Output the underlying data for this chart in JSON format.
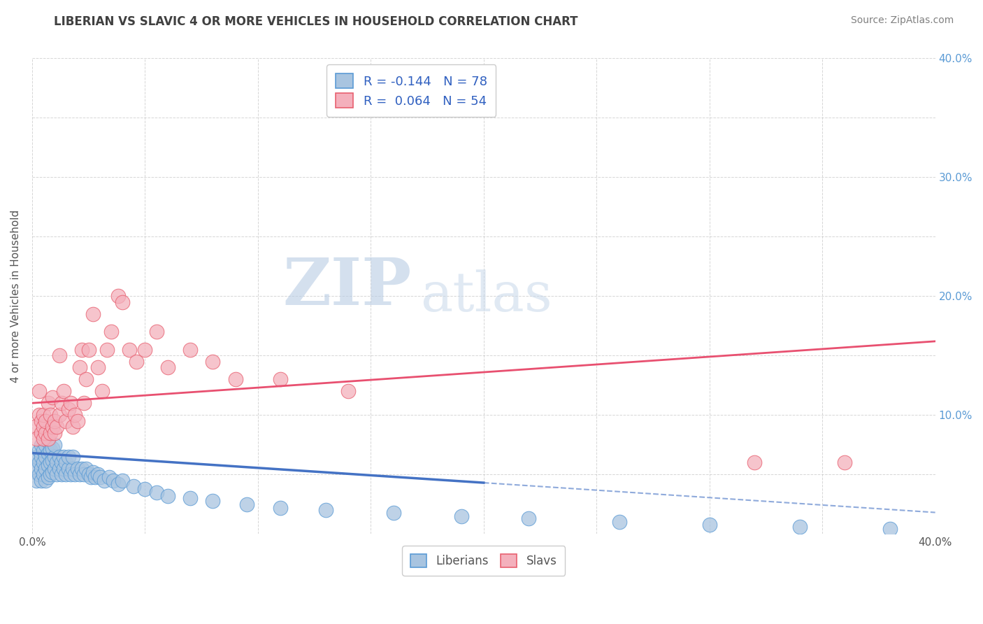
{
  "title": "LIBERIAN VS SLAVIC 4 OR MORE VEHICLES IN HOUSEHOLD CORRELATION CHART",
  "source_text": "Source: ZipAtlas.com",
  "ylabel": "4 or more Vehicles in Household",
  "xlim": [
    0.0,
    0.4
  ],
  "ylim": [
    0.0,
    0.4
  ],
  "xticks": [
    0.0,
    0.05,
    0.1,
    0.15,
    0.2,
    0.25,
    0.3,
    0.35,
    0.4
  ],
  "yticks": [
    0.0,
    0.05,
    0.1,
    0.15,
    0.2,
    0.25,
    0.3,
    0.35,
    0.4
  ],
  "color_liberian": "#a8c4e0",
  "color_slav": "#f4b0bc",
  "color_liberian_edge": "#5b9bd5",
  "color_slav_edge": "#e86070",
  "color_liberian_line": "#4472c4",
  "color_slav_line": "#e85070",
  "color_grid": "#cccccc",
  "color_title": "#404040",
  "color_source": "#808080",
  "color_right_axis": "#5b9bd5",
  "watermark_zip": "ZIP",
  "watermark_atlas": "atlas",
  "liberian_x": [
    0.001,
    0.002,
    0.002,
    0.003,
    0.003,
    0.003,
    0.004,
    0.004,
    0.004,
    0.004,
    0.005,
    0.005,
    0.005,
    0.006,
    0.006,
    0.006,
    0.006,
    0.007,
    0.007,
    0.007,
    0.007,
    0.008,
    0.008,
    0.008,
    0.009,
    0.009,
    0.009,
    0.01,
    0.01,
    0.01,
    0.011,
    0.011,
    0.012,
    0.012,
    0.013,
    0.013,
    0.014,
    0.014,
    0.015,
    0.015,
    0.016,
    0.016,
    0.017,
    0.018,
    0.018,
    0.019,
    0.02,
    0.021,
    0.022,
    0.023,
    0.024,
    0.025,
    0.026,
    0.027,
    0.028,
    0.029,
    0.03,
    0.032,
    0.034,
    0.036,
    0.038,
    0.04,
    0.045,
    0.05,
    0.055,
    0.06,
    0.07,
    0.08,
    0.095,
    0.11,
    0.13,
    0.16,
    0.19,
    0.22,
    0.26,
    0.3,
    0.34,
    0.38
  ],
  "liberian_y": [
    0.055,
    0.045,
    0.065,
    0.05,
    0.06,
    0.07,
    0.045,
    0.055,
    0.065,
    0.075,
    0.05,
    0.06,
    0.07,
    0.045,
    0.055,
    0.065,
    0.075,
    0.048,
    0.058,
    0.068,
    0.078,
    0.05,
    0.06,
    0.07,
    0.052,
    0.062,
    0.072,
    0.055,
    0.065,
    0.075,
    0.05,
    0.06,
    0.055,
    0.065,
    0.05,
    0.06,
    0.055,
    0.065,
    0.05,
    0.06,
    0.055,
    0.065,
    0.05,
    0.055,
    0.065,
    0.05,
    0.055,
    0.05,
    0.055,
    0.05,
    0.055,
    0.05,
    0.048,
    0.052,
    0.048,
    0.05,
    0.048,
    0.045,
    0.048,
    0.045,
    0.042,
    0.045,
    0.04,
    0.038,
    0.035,
    0.032,
    0.03,
    0.028,
    0.025,
    0.022,
    0.02,
    0.018,
    0.015,
    0.013,
    0.01,
    0.008,
    0.006,
    0.004
  ],
  "slav_x": [
    0.001,
    0.002,
    0.003,
    0.003,
    0.004,
    0.004,
    0.005,
    0.005,
    0.005,
    0.006,
    0.006,
    0.007,
    0.007,
    0.008,
    0.008,
    0.009,
    0.009,
    0.01,
    0.01,
    0.011,
    0.012,
    0.012,
    0.013,
    0.014,
    0.015,
    0.016,
    0.017,
    0.018,
    0.019,
    0.02,
    0.021,
    0.022,
    0.023,
    0.024,
    0.025,
    0.027,
    0.029,
    0.031,
    0.033,
    0.035,
    0.038,
    0.04,
    0.043,
    0.046,
    0.05,
    0.055,
    0.06,
    0.07,
    0.08,
    0.09,
    0.11,
    0.14,
    0.32,
    0.36
  ],
  "slav_y": [
    0.09,
    0.08,
    0.1,
    0.12,
    0.085,
    0.095,
    0.08,
    0.09,
    0.1,
    0.085,
    0.095,
    0.08,
    0.11,
    0.085,
    0.1,
    0.09,
    0.115,
    0.085,
    0.095,
    0.09,
    0.1,
    0.15,
    0.11,
    0.12,
    0.095,
    0.105,
    0.11,
    0.09,
    0.1,
    0.095,
    0.14,
    0.155,
    0.11,
    0.13,
    0.155,
    0.185,
    0.14,
    0.12,
    0.155,
    0.17,
    0.2,
    0.195,
    0.155,
    0.145,
    0.155,
    0.17,
    0.14,
    0.155,
    0.145,
    0.13,
    0.13,
    0.12,
    0.06,
    0.06
  ],
  "trend_lib_y_at_0": 0.068,
  "trend_lib_y_at_40": 0.018,
  "trend_lib_solid_end_x": 0.2,
  "trend_slav_y_at_0": 0.11,
  "trend_slav_y_at_40": 0.162,
  "trend_slav_solid_end_x": 0.4
}
